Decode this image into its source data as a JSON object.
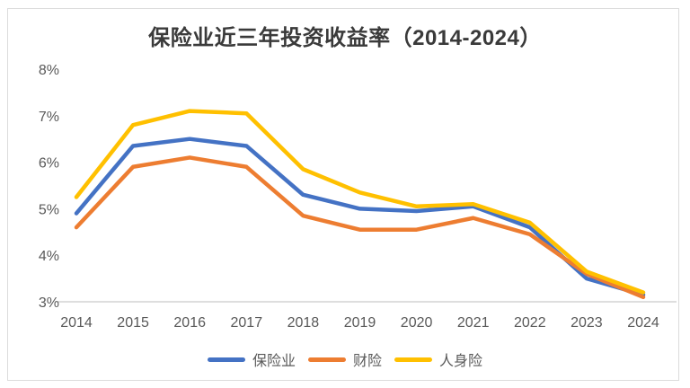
{
  "title": "保险业近三年投资收益率（2014-2024）",
  "chart_data": {
    "type": "line",
    "title": "保险业近三年投资收益率（2014-2024）",
    "x": [
      2014,
      2015,
      2016,
      2017,
      2018,
      2019,
      2020,
      2021,
      2022,
      2023,
      2024
    ],
    "series": [
      {
        "name": "保险业",
        "color": "#4472C4",
        "values": [
          4.9,
          6.35,
          6.5,
          6.35,
          5.3,
          5.0,
          4.95,
          5.05,
          4.6,
          3.5,
          3.15
        ]
      },
      {
        "name": "财险",
        "color": "#ED7D31",
        "values": [
          4.6,
          5.9,
          6.1,
          5.9,
          4.85,
          4.55,
          4.55,
          4.8,
          4.45,
          3.6,
          3.1
        ]
      },
      {
        "name": "人身险",
        "color": "#FFC000",
        "values": [
          5.25,
          6.8,
          7.1,
          7.05,
          5.85,
          5.35,
          5.05,
          5.1,
          4.7,
          3.65,
          3.2
        ]
      }
    ],
    "ylim": [
      3,
      8
    ],
    "ytick_step": 1,
    "ytick_suffix": "%",
    "grid": false,
    "legend_position": "bottom",
    "axis_line_color": "#c9c9c9",
    "tick_label_color": "#595959"
  }
}
